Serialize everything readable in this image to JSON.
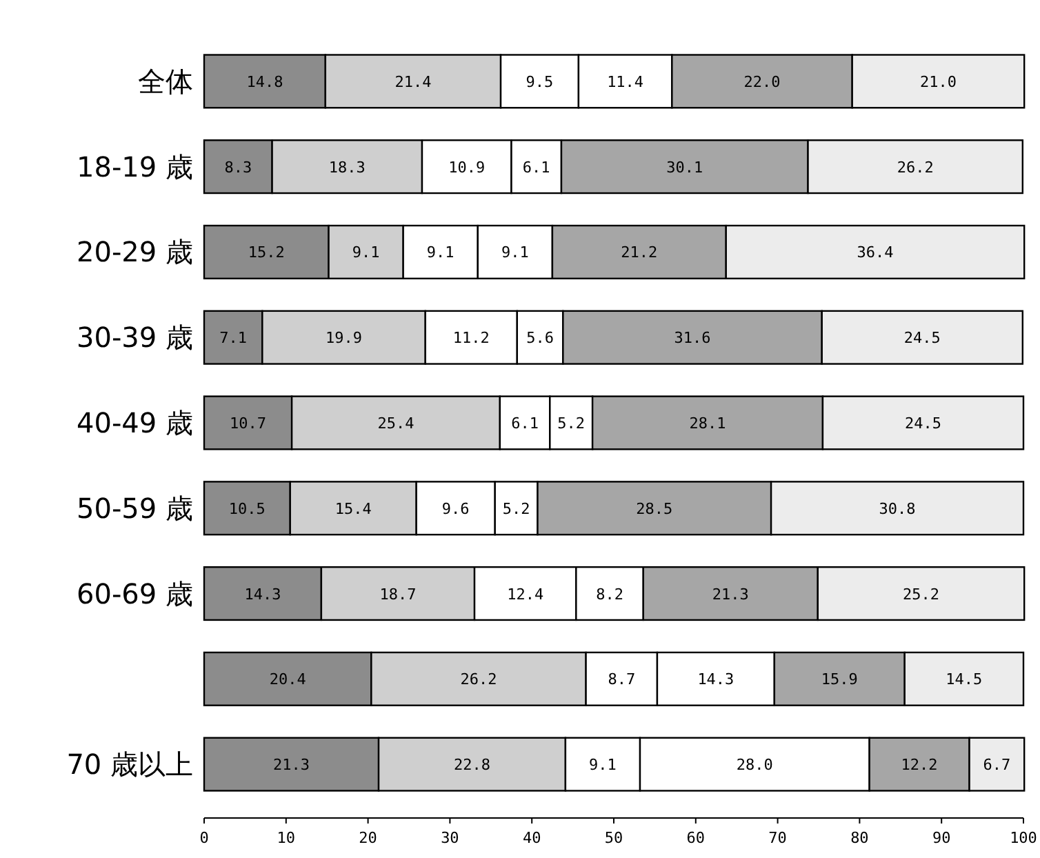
{
  "chart_data": {
    "type": "bar",
    "orientation": "horizontal",
    "stacked": true,
    "categories": [
      "全体",
      "18-19 歳",
      "20-29 歳",
      "30-39 歳",
      "40-49 歳",
      "50-59 歳",
      "60-69 歳",
      null,
      "70 歳以上"
    ],
    "xlim": [
      0,
      100
    ],
    "xticks": [
      0,
      10,
      20,
      30,
      40,
      50,
      60,
      70,
      80,
      90,
      100
    ],
    "series": [
      {
        "color": "#8c8c8c",
        "values": [
          14.8,
          8.3,
          15.2,
          7.1,
          10.7,
          10.5,
          14.3,
          20.4,
          21.3
        ],
        "value_labels": [
          "14.8",
          "8.3",
          "15.2",
          "7.1",
          "10.7",
          "10.5",
          "14.3",
          "20.4",
          "21.3"
        ]
      },
      {
        "color": "#cfcfcf",
        "values": [
          21.4,
          18.3,
          9.1,
          19.9,
          25.4,
          15.4,
          18.7,
          26.2,
          22.8
        ],
        "value_labels": [
          "21.4",
          "18.3",
          "9.1",
          "19.9",
          "25.4",
          "15.4",
          "18.7",
          "26.2",
          "22.8"
        ]
      },
      {
        "color": "#ffffff",
        "values": [
          9.5,
          10.9,
          9.1,
          11.2,
          6.1,
          9.6,
          12.4,
          8.7,
          9.1
        ],
        "value_labels": [
          "9.5",
          "10.9",
          "9.1",
          "11.2",
          "6.1",
          "9.6",
          "12.4",
          "8.7",
          "9.1"
        ]
      },
      {
        "color": "#ffffff",
        "values": [
          11.4,
          6.1,
          9.1,
          5.6,
          5.2,
          5.2,
          8.2,
          14.3,
          28.0
        ],
        "value_labels": [
          "11.4",
          "6.1",
          "9.1",
          "5.6",
          "5.2",
          "5.2",
          "8.2",
          "14.3",
          "28.0"
        ]
      },
      {
        "color": "#a6a6a6",
        "values": [
          22.0,
          30.1,
          21.2,
          31.6,
          28.1,
          28.5,
          21.3,
          15.9,
          12.2
        ],
        "value_labels": [
          "22.0",
          "30.1",
          "21.2",
          "31.6",
          "28.1",
          "28.5",
          "21.3",
          "15.9",
          "12.2"
        ]
      },
      {
        "color": "#ececec",
        "values": [
          21.0,
          26.2,
          36.4,
          24.5,
          24.5,
          30.8,
          25.2,
          14.5,
          6.7
        ],
        "value_labels": [
          "21.0",
          "26.2",
          "36.4",
          "24.5",
          "24.5",
          "30.8",
          "25.2",
          "14.5",
          "6.7"
        ]
      }
    ]
  }
}
